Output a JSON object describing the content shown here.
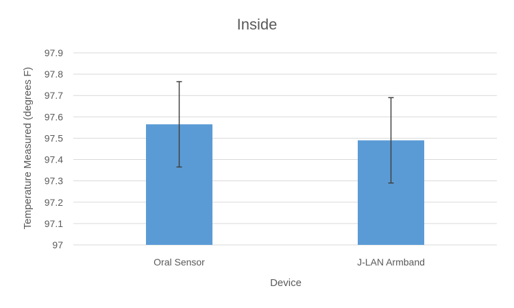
{
  "chart_data": {
    "type": "bar",
    "title": "Inside",
    "xlabel": "Device",
    "ylabel": "Temperature Measured (degrees F)",
    "categories": [
      "Oral Sensor",
      "J-LAN Armband"
    ],
    "values": [
      97.565,
      97.49
    ],
    "error": [
      0.2,
      0.2
    ],
    "ylim": [
      97,
      97.9
    ],
    "yticks": [
      "97",
      "97.1",
      "97.2",
      "97.3",
      "97.4",
      "97.5",
      "97.6",
      "97.7",
      "97.8",
      "97.9"
    ],
    "bar_color": "#5b9bd5",
    "grid": true,
    "legend": "none"
  }
}
